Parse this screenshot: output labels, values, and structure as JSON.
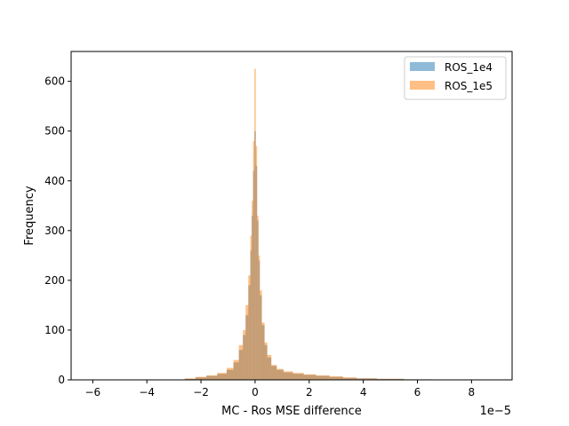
{
  "chart_data": {
    "type": "histogram",
    "xlabel": "MC - Ros MSE difference",
    "ylabel": "Frequency",
    "x_offset_label": "1e−5",
    "xlim": [
      -6.8,
      9.5
    ],
    "ylim": [
      0,
      660
    ],
    "xticks": [
      -6,
      -4,
      -2,
      0,
      2,
      4,
      6,
      8
    ],
    "xtick_labels": [
      "−6",
      "−4",
      "−2",
      "0",
      "2",
      "4",
      "6",
      "8"
    ],
    "yticks": [
      0,
      100,
      200,
      300,
      400,
      500,
      600
    ],
    "ytick_labels": [
      "0",
      "100",
      "200",
      "300",
      "400",
      "500",
      "600"
    ],
    "grid": false,
    "legend_position": "top-right",
    "series": [
      {
        "name": "ROS_1e4",
        "color": "#1f77b4",
        "alpha": 0.5,
        "x": [
          -2.4,
          -2.0,
          -1.6,
          -1.2,
          -0.9,
          -0.7,
          -0.5,
          -0.4,
          -0.3,
          -0.2,
          -0.15,
          -0.1,
          -0.05,
          0.0,
          0.05,
          0.1,
          0.15,
          0.2,
          0.3,
          0.4,
          0.5,
          0.7,
          0.9,
          1.2,
          1.6,
          2.0,
          2.5,
          3.0,
          3.5,
          4.0,
          5.0,
          6.0
        ],
        "values": [
          2,
          5,
          8,
          12,
          20,
          35,
          60,
          90,
          130,
          190,
          260,
          330,
          420,
          500,
          430,
          320,
          240,
          170,
          110,
          70,
          45,
          28,
          20,
          15,
          12,
          10,
          8,
          6,
          4,
          3,
          2,
          1
        ]
      },
      {
        "name": "ROS_1e5",
        "color": "#ff7f0e",
        "alpha": 0.5,
        "x": [
          -2.4,
          -2.0,
          -1.6,
          -1.2,
          -0.9,
          -0.7,
          -0.5,
          -0.4,
          -0.3,
          -0.2,
          -0.15,
          -0.1,
          -0.05,
          0.0,
          0.05,
          0.1,
          0.15,
          0.2,
          0.3,
          0.4,
          0.5,
          0.7,
          0.9,
          1.2,
          1.6,
          2.0,
          2.5,
          3.0,
          3.5,
          4.0,
          5.0,
          6.0
        ],
        "values": [
          3,
          6,
          9,
          14,
          24,
          40,
          70,
          100,
          150,
          210,
          290,
          360,
          480,
          625,
          470,
          330,
          250,
          180,
          115,
          75,
          50,
          30,
          22,
          17,
          14,
          11,
          9,
          7,
          5,
          3,
          2,
          1
        ]
      }
    ]
  }
}
